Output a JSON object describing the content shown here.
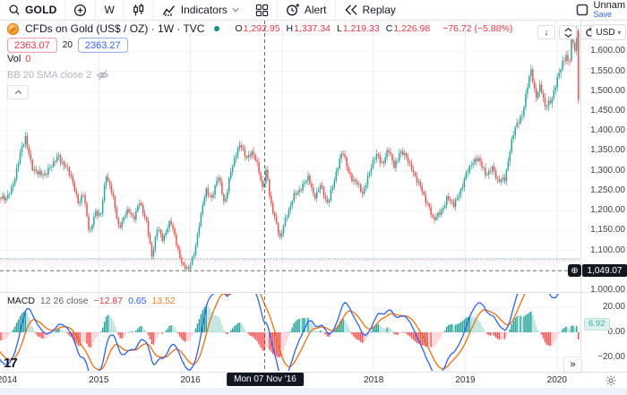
{
  "header": {
    "symbol": "GOLD",
    "interval": "W",
    "indicators": "Indicators",
    "alert": "Alert",
    "replay": "Replay",
    "layout_name": "Unnam",
    "save": "Save"
  },
  "legend": {
    "title": "CFDs on Gold (US$ / OZ) · 1W · TVC",
    "ohlc": [
      {
        "k": "O",
        "v": "1,292.95"
      },
      {
        "k": "H",
        "v": "1,337.34"
      },
      {
        "k": "L",
        "v": "1,219.33"
      },
      {
        "k": "C",
        "v": "1,226.98"
      }
    ],
    "change": "−76.72 (−5.88%)",
    "bid": "2363.07",
    "spread": "20",
    "ask": "2363.27",
    "vol_label": "Vol",
    "vol_value": "0",
    "indicator_hidden": "BB 20 SMA close 2"
  },
  "macd_legend": {
    "name": "MACD",
    "params": "12 26 close",
    "values": {
      "hist": "−12.87",
      "macd": "0.65",
      "signal": "13.52"
    }
  },
  "price_scale": {
    "currency": "USD",
    "ticks": [
      "1,600.00",
      "1,550.00",
      "1,500.00",
      "1,450.00",
      "1,400.00",
      "1,350.00",
      "1,300.00",
      "1,250.00",
      "1,200.00",
      "1,150.00",
      "1,100.00",
      "1,000.00"
    ],
    "crosshair_label": "1,049.07"
  },
  "macd_scale": {
    "ticks": [
      "20.00",
      "0.00",
      "−20.00"
    ],
    "last_value": "6.92"
  },
  "time_scale": {
    "years": [
      "2014",
      "2015",
      "2016",
      "2017",
      "2018",
      "2019",
      "2020"
    ],
    "crosshair_label": "Mon 07 Nov '16"
  },
  "icons": {
    "pane_down": "↓",
    "usd_caret": "▾",
    "collapse_up": "⌃",
    "plus_alert": "⊕",
    "more_right": "»"
  },
  "chart_data": {
    "type": "candlestick",
    "title": "CFDs on Gold (US$ / OZ) · 1W · TVC",
    "interval": "1W",
    "x_axis": {
      "years": [
        2014,
        2015,
        2016,
        2017,
        2018,
        2019,
        2020
      ],
      "bars_per_year": 52.2
    },
    "y_axis": {
      "min": 1000,
      "max": 1660,
      "tick_step": 50,
      "ticks": [
        1600,
        1550,
        1500,
        1450,
        1400,
        1350,
        1300,
        1250,
        1200,
        1150,
        1100,
        1000
      ]
    },
    "price_path_anchors": [
      [
        2013.3,
        1370
      ],
      [
        2013.45,
        1300
      ],
      [
        2013.55,
        1340
      ],
      [
        2013.7,
        1285
      ],
      [
        2013.8,
        1320
      ],
      [
        2013.9,
        1240
      ],
      [
        2013.98,
        1225
      ],
      [
        2014.05,
        1255
      ],
      [
        2014.13,
        1330
      ],
      [
        2014.2,
        1385
      ],
      [
        2014.27,
        1310
      ],
      [
        2014.33,
        1290
      ],
      [
        2014.42,
        1295
      ],
      [
        2014.5,
        1315
      ],
      [
        2014.56,
        1340
      ],
      [
        2014.63,
        1310
      ],
      [
        2014.7,
        1285
      ],
      [
        2014.78,
        1218
      ],
      [
        2014.83,
        1240
      ],
      [
        2014.9,
        1145
      ],
      [
        2014.96,
        1195
      ],
      [
        2015.02,
        1185
      ],
      [
        2015.08,
        1295
      ],
      [
        2015.15,
        1235
      ],
      [
        2015.22,
        1155
      ],
      [
        2015.3,
        1200
      ],
      [
        2015.38,
        1180
      ],
      [
        2015.44,
        1225
      ],
      [
        2015.52,
        1170
      ],
      [
        2015.58,
        1088
      ],
      [
        2015.64,
        1155
      ],
      [
        2015.7,
        1125
      ],
      [
        2015.78,
        1180
      ],
      [
        2015.85,
        1110
      ],
      [
        2015.92,
        1062
      ],
      [
        2015.98,
        1052
      ],
      [
        2016.04,
        1090
      ],
      [
        2016.1,
        1175
      ],
      [
        2016.17,
        1250
      ],
      [
        2016.23,
        1230
      ],
      [
        2016.3,
        1290
      ],
      [
        2016.37,
        1215
      ],
      [
        2016.44,
        1300
      ],
      [
        2016.5,
        1340
      ],
      [
        2016.55,
        1368
      ],
      [
        2016.62,
        1330
      ],
      [
        2016.68,
        1345
      ],
      [
        2016.74,
        1310
      ],
      [
        2016.79,
        1255
      ],
      [
        2016.83,
        1300
      ],
      [
        2016.87,
        1225
      ],
      [
        2016.92,
        1185
      ],
      [
        2016.98,
        1128
      ],
      [
        2017.04,
        1180
      ],
      [
        2017.12,
        1235
      ],
      [
        2017.2,
        1250
      ],
      [
        2017.28,
        1290
      ],
      [
        2017.35,
        1228
      ],
      [
        2017.42,
        1268
      ],
      [
        2017.5,
        1212
      ],
      [
        2017.58,
        1290
      ],
      [
        2017.66,
        1350
      ],
      [
        2017.72,
        1298
      ],
      [
        2017.8,
        1272
      ],
      [
        2017.88,
        1242
      ],
      [
        2017.96,
        1305
      ],
      [
        2018.04,
        1340
      ],
      [
        2018.1,
        1318
      ],
      [
        2018.16,
        1355
      ],
      [
        2018.22,
        1308
      ],
      [
        2018.28,
        1348
      ],
      [
        2018.36,
        1332
      ],
      [
        2018.44,
        1295
      ],
      [
        2018.52,
        1250
      ],
      [
        2018.6,
        1212
      ],
      [
        2018.65,
        1175
      ],
      [
        2018.72,
        1192
      ],
      [
        2018.8,
        1232
      ],
      [
        2018.87,
        1212
      ],
      [
        2018.94,
        1248
      ],
      [
        2019.0,
        1282
      ],
      [
        2019.07,
        1322
      ],
      [
        2019.14,
        1332
      ],
      [
        2019.22,
        1288
      ],
      [
        2019.29,
        1312
      ],
      [
        2019.35,
        1272
      ],
      [
        2019.43,
        1282
      ],
      [
        2019.49,
        1352
      ],
      [
        2019.55,
        1415
      ],
      [
        2019.62,
        1440
      ],
      [
        2019.68,
        1512
      ],
      [
        2019.72,
        1552
      ],
      [
        2019.77,
        1488
      ],
      [
        2019.82,
        1512
      ],
      [
        2019.87,
        1458
      ],
      [
        2019.93,
        1478
      ],
      [
        2020.0,
        1522
      ],
      [
        2020.06,
        1572
      ],
      [
        2020.1,
        1592
      ],
      [
        2020.13,
        1565
      ],
      [
        2020.165,
        1648
      ],
      [
        2020.19,
        1585
      ],
      [
        2020.215,
        1642
      ],
      [
        2020.235,
        1478
      ],
      [
        2020.25,
        1628
      ]
    ],
    "crosshair": {
      "date": "Mon 07 Nov '16",
      "price": 1049.07,
      "bar": {
        "open": 1292.95,
        "high": 1337.34,
        "low": 1219.33,
        "close": 1226.98,
        "change": -76.72,
        "change_pct": -5.88
      }
    },
    "overlay_dotted_price_line": 1078,
    "indicator": {
      "type": "MACD",
      "fast": 12,
      "slow": 26,
      "signal": 9,
      "ticks": [
        20,
        0,
        -20
      ],
      "last_histogram": 6.92,
      "values_at_crosshair": {
        "histogram": -12.87,
        "macd": 0.65,
        "signal": 13.52
      }
    },
    "colors": {
      "up": "#26a69a",
      "down": "#ef5350",
      "macd_line": "#2962ff",
      "signal_line": "#ff6d00",
      "hist_up": "#26a69a",
      "hist_up_weak": "#b2dfdb",
      "hist_down": "#ff5252",
      "hist_down_weak": "#ffcdd2",
      "grid": "#eef0f6",
      "crosshair": "#50535e",
      "label_bg": "#131722"
    }
  }
}
